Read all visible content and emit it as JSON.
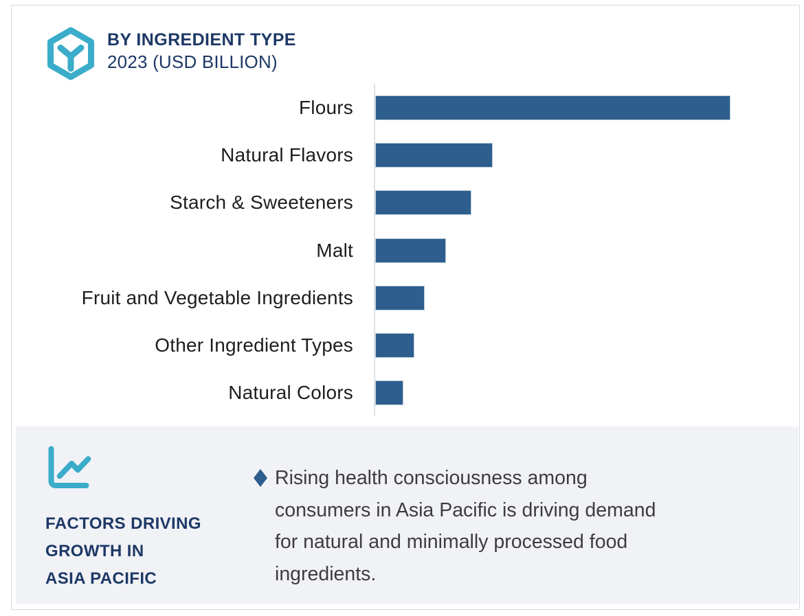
{
  "header": {
    "title": "BY INGREDIENT TYPE",
    "subtitle": "2023 (USD BILLION)",
    "icon": "hexagon-y-icon",
    "title_color": "#1d3866",
    "icon_color": "#3bacca"
  },
  "chart_data": {
    "type": "bar",
    "orientation": "horizontal",
    "title": "BY INGREDIENT TYPE",
    "subtitle": "2023 (USD BILLION)",
    "categories": [
      "Flours",
      "Natural Flavors",
      "Starch & Sweeteners",
      "Malt",
      "Fruit and Vegetable Ingredients",
      "Other Ingredient Types",
      "Natural Colors"
    ],
    "values_pct_of_max": [
      100,
      33,
      27,
      20,
      14,
      11,
      8
    ],
    "value_labels_shown": false,
    "axis_tick_labels_shown": false,
    "gridlines": false,
    "legend": "none",
    "bar_color": "#2d5e8d",
    "axis_line_color": "#dfe1e4"
  },
  "factors": {
    "icon": "line-chart-icon",
    "icon_color": "#3bacca",
    "panel_background": "#f1f2f6",
    "heading_lines": [
      "FACTORS DRIVING",
      "GROWTH IN",
      "ASIA PACIFIC"
    ],
    "heading_color": "#1d3866",
    "bullets": [
      {
        "marker": "diamond",
        "marker_color": "#2d5e8d",
        "text": "Rising health consciousness among consumers in Asia Pacific is driving demand for natural and minimally processed food ingredients.",
        "lines": [
          "Rising health consciousness among",
          "consumers in Asia Pacific is driving demand",
          "for natural and minimally processed food",
          "ingredients."
        ]
      }
    ]
  }
}
